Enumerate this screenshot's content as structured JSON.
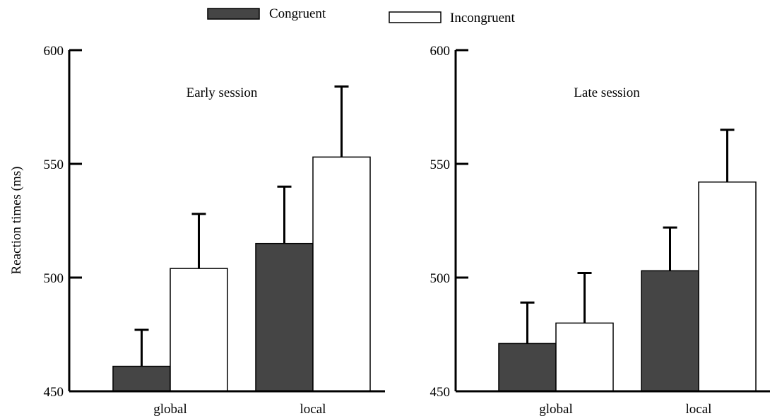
{
  "legend": [
    {
      "label": "Congruent",
      "color": "#454545"
    },
    {
      "label": "Incongruent",
      "color": "#ffffff"
    }
  ],
  "ylabel": "Reaction times (ms)",
  "chart_data": [
    {
      "type": "bar",
      "title": "Early session",
      "categories": [
        "global",
        "local"
      ],
      "series": [
        {
          "name": "Congruent",
          "values": [
            461,
            515
          ],
          "error": [
            16,
            25
          ]
        },
        {
          "name": "Incongruent",
          "values": [
            504,
            553
          ],
          "error": [
            24,
            31
          ]
        }
      ],
      "ylabel": "Reaction times (ms)",
      "ylim": [
        450,
        600
      ],
      "yticks": [
        450,
        500,
        550,
        600
      ]
    },
    {
      "type": "bar",
      "title": "Late session",
      "categories": [
        "global",
        "local"
      ],
      "series": [
        {
          "name": "Congruent",
          "values": [
            471,
            503
          ],
          "error": [
            18,
            19
          ]
        },
        {
          "name": "Incongruent",
          "values": [
            480,
            542
          ],
          "error": [
            22,
            23
          ]
        }
      ],
      "ylim": [
        450,
        600
      ],
      "yticks": [
        450,
        500,
        550,
        600
      ]
    }
  ]
}
